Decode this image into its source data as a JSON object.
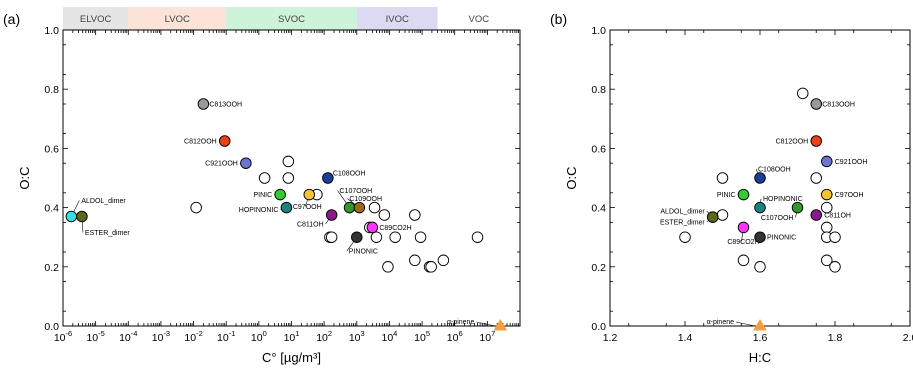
{
  "chart_data": [
    {
      "type": "scatter",
      "panel_label": "(a)",
      "xlabel": "C° [µg/m³]",
      "ylabel": "O:C",
      "x_scale": "log",
      "xlim": [
        1e-06,
        100000000.0
      ],
      "ylim": [
        0,
        1.0
      ],
      "xtick_labels": [
        "10-6",
        "10-5",
        "10-4",
        "10-3",
        "10-2",
        "10-1",
        "100",
        "101",
        "102",
        "103",
        "104",
        "105",
        "106",
        "107"
      ],
      "ytick_labels": [
        "0.0",
        "0.2",
        "0.4",
        "0.6",
        "0.8",
        "1.0"
      ],
      "volatility_bands": [
        {
          "label": "ELVOC",
          "from": 1e-06,
          "to": 0.0001,
          "color": "#e5e5e5"
        },
        {
          "label": "LVOC",
          "from": 0.0001,
          "to": 0.1,
          "color": "#fbe3d8"
        },
        {
          "label": "SVOC",
          "from": 0.1,
          "to": 1000.0,
          "color": "#cdf3d9"
        },
        {
          "label": "IVOC",
          "from": 1000.0,
          "to": 300000.0,
          "color": "#dcdaf3"
        },
        {
          "label": "VOC",
          "from": 300000.0,
          "to": 100000000.0,
          "color": "#ffffff"
        }
      ],
      "labeled_points": [
        {
          "name": "C813OOH",
          "x": 0.02,
          "y": 0.75,
          "color": "#999999"
        },
        {
          "name": "C812OOH",
          "x": 0.09,
          "y": 0.625,
          "color": "#e8421a"
        },
        {
          "name": "C921OOH",
          "x": 0.4,
          "y": 0.55,
          "color": "#6a75cf"
        },
        {
          "name": "C108OOH",
          "x": 130,
          "y": 0.5,
          "color": "#1d3d99"
        },
        {
          "name": "PINIC",
          "x": 4.5,
          "y": 0.444,
          "color": "#33cc33"
        },
        {
          "name": "C97OOH",
          "x": 35,
          "y": 0.444,
          "color": "#f5c230"
        },
        {
          "name": "HOPINONIC",
          "x": 7,
          "y": 0.4,
          "color": "#1f8080"
        },
        {
          "name": "C107OOH",
          "x": 600,
          "y": 0.4,
          "color": "#2e9a2e"
        },
        {
          "name": "C109OOH",
          "x": 1200,
          "y": 0.4,
          "color": "#9a6a1a"
        },
        {
          "name": "C811OH",
          "x": 170,
          "y": 0.375,
          "color": "#8a1a8a"
        },
        {
          "name": "C89CO2H",
          "x": 3000,
          "y": 0.333,
          "color": "#ff33ff"
        },
        {
          "name": "PINONIC",
          "x": 1000,
          "y": 0.3,
          "color": "#333333"
        },
        {
          "name": "ALDOL_dimer",
          "x": 1.8e-06,
          "y": 0.37,
          "color": "#33e0e6"
        },
        {
          "name": "ESTER_dimer",
          "x": 3.8e-06,
          "y": 0.37,
          "color": "#5a6a1a"
        }
      ],
      "open_points": [
        {
          "x": 0.012,
          "y": 0.4
        },
        {
          "x": 8,
          "y": 0.556
        },
        {
          "x": 1.5,
          "y": 0.5
        },
        {
          "x": 8,
          "y": 0.5
        },
        {
          "x": 60,
          "y": 0.444
        },
        {
          "x": 150,
          "y": 0.3
        },
        {
          "x": 170,
          "y": 0.3
        },
        {
          "x": 3500,
          "y": 0.4
        },
        {
          "x": 7000,
          "y": 0.375
        },
        {
          "x": 2500,
          "y": 0.333
        },
        {
          "x": 4000,
          "y": 0.3
        },
        {
          "x": 15000,
          "y": 0.3
        },
        {
          "x": 60000,
          "y": 0.375
        },
        {
          "x": 90000,
          "y": 0.3
        },
        {
          "x": 9000,
          "y": 0.2
        },
        {
          "x": 60000,
          "y": 0.222
        },
        {
          "x": 170000,
          "y": 0.2
        },
        {
          "x": 190000,
          "y": 0.2
        },
        {
          "x": 450000,
          "y": 0.222
        },
        {
          "x": 5000000,
          "y": 0.3
        }
      ],
      "reference": {
        "name": "α-pinene",
        "x": 25000000.0,
        "y": 0.0,
        "color": "#f0a040",
        "marker": "triangle"
      }
    },
    {
      "type": "scatter",
      "panel_label": "(b)",
      "xlabel": "H:C",
      "ylabel": "O:C",
      "xlim": [
        1.2,
        2.0
      ],
      "ylim": [
        0,
        1.0
      ],
      "xtick_labels": [
        "1.2",
        "1.4",
        "1.6",
        "1.8",
        "2.0"
      ],
      "ytick_labels": [
        "0.0",
        "0.2",
        "0.4",
        "0.6",
        "0.8",
        "1.0"
      ],
      "labeled_points": [
        {
          "name": "C813OOH",
          "x": 1.75,
          "y": 0.75,
          "color": "#999999"
        },
        {
          "name": "C812OOH",
          "x": 1.75,
          "y": 0.625,
          "color": "#e8421a"
        },
        {
          "name": "C921OOH",
          "x": 1.778,
          "y": 0.556,
          "color": "#6a75cf"
        },
        {
          "name": "C108OOH",
          "x": 1.6,
          "y": 0.5,
          "color": "#1d3d99"
        },
        {
          "name": "PINIC",
          "x": 1.556,
          "y": 0.444,
          "color": "#33cc33"
        },
        {
          "name": "C97OOH",
          "x": 1.778,
          "y": 0.444,
          "color": "#f5c230"
        },
        {
          "name": "HOPINONIC",
          "x": 1.6,
          "y": 0.4,
          "color": "#1f8080"
        },
        {
          "name": "C107OOH",
          "x": 1.7,
          "y": 0.4,
          "color": "#2e9a2e"
        },
        {
          "name": "C811OH",
          "x": 1.75,
          "y": 0.375,
          "color": "#8a1a8a"
        },
        {
          "name": "ALDOL_dimer",
          "x": 1.474,
          "y": 0.368,
          "color": "#33e0e6"
        },
        {
          "name": "ESTER_dimer",
          "x": 1.474,
          "y": 0.368,
          "color": "#5a6a1a"
        },
        {
          "name": "C89CO2H",
          "x": 1.556,
          "y": 0.333,
          "color": "#ff33ff"
        },
        {
          "name": "PINONIC",
          "x": 1.6,
          "y": 0.3,
          "color": "#333333"
        }
      ],
      "open_points": [
        {
          "x": 1.714,
          "y": 0.786
        },
        {
          "x": 1.5,
          "y": 0.5
        },
        {
          "x": 1.75,
          "y": 0.5
        },
        {
          "x": 1.5,
          "y": 0.375
        },
        {
          "x": 1.778,
          "y": 0.4
        },
        {
          "x": 1.778,
          "y": 0.333
        },
        {
          "x": 1.778,
          "y": 0.3
        },
        {
          "x": 1.8,
          "y": 0.3
        },
        {
          "x": 1.4,
          "y": 0.3
        },
        {
          "x": 1.556,
          "y": 0.222
        },
        {
          "x": 1.6,
          "y": 0.2
        },
        {
          "x": 1.778,
          "y": 0.222
        },
        {
          "x": 1.8,
          "y": 0.2
        }
      ],
      "reference": {
        "name": "α-pinene",
        "x": 1.6,
        "y": 0.0,
        "color": "#f0a040",
        "marker": "triangle"
      }
    }
  ]
}
